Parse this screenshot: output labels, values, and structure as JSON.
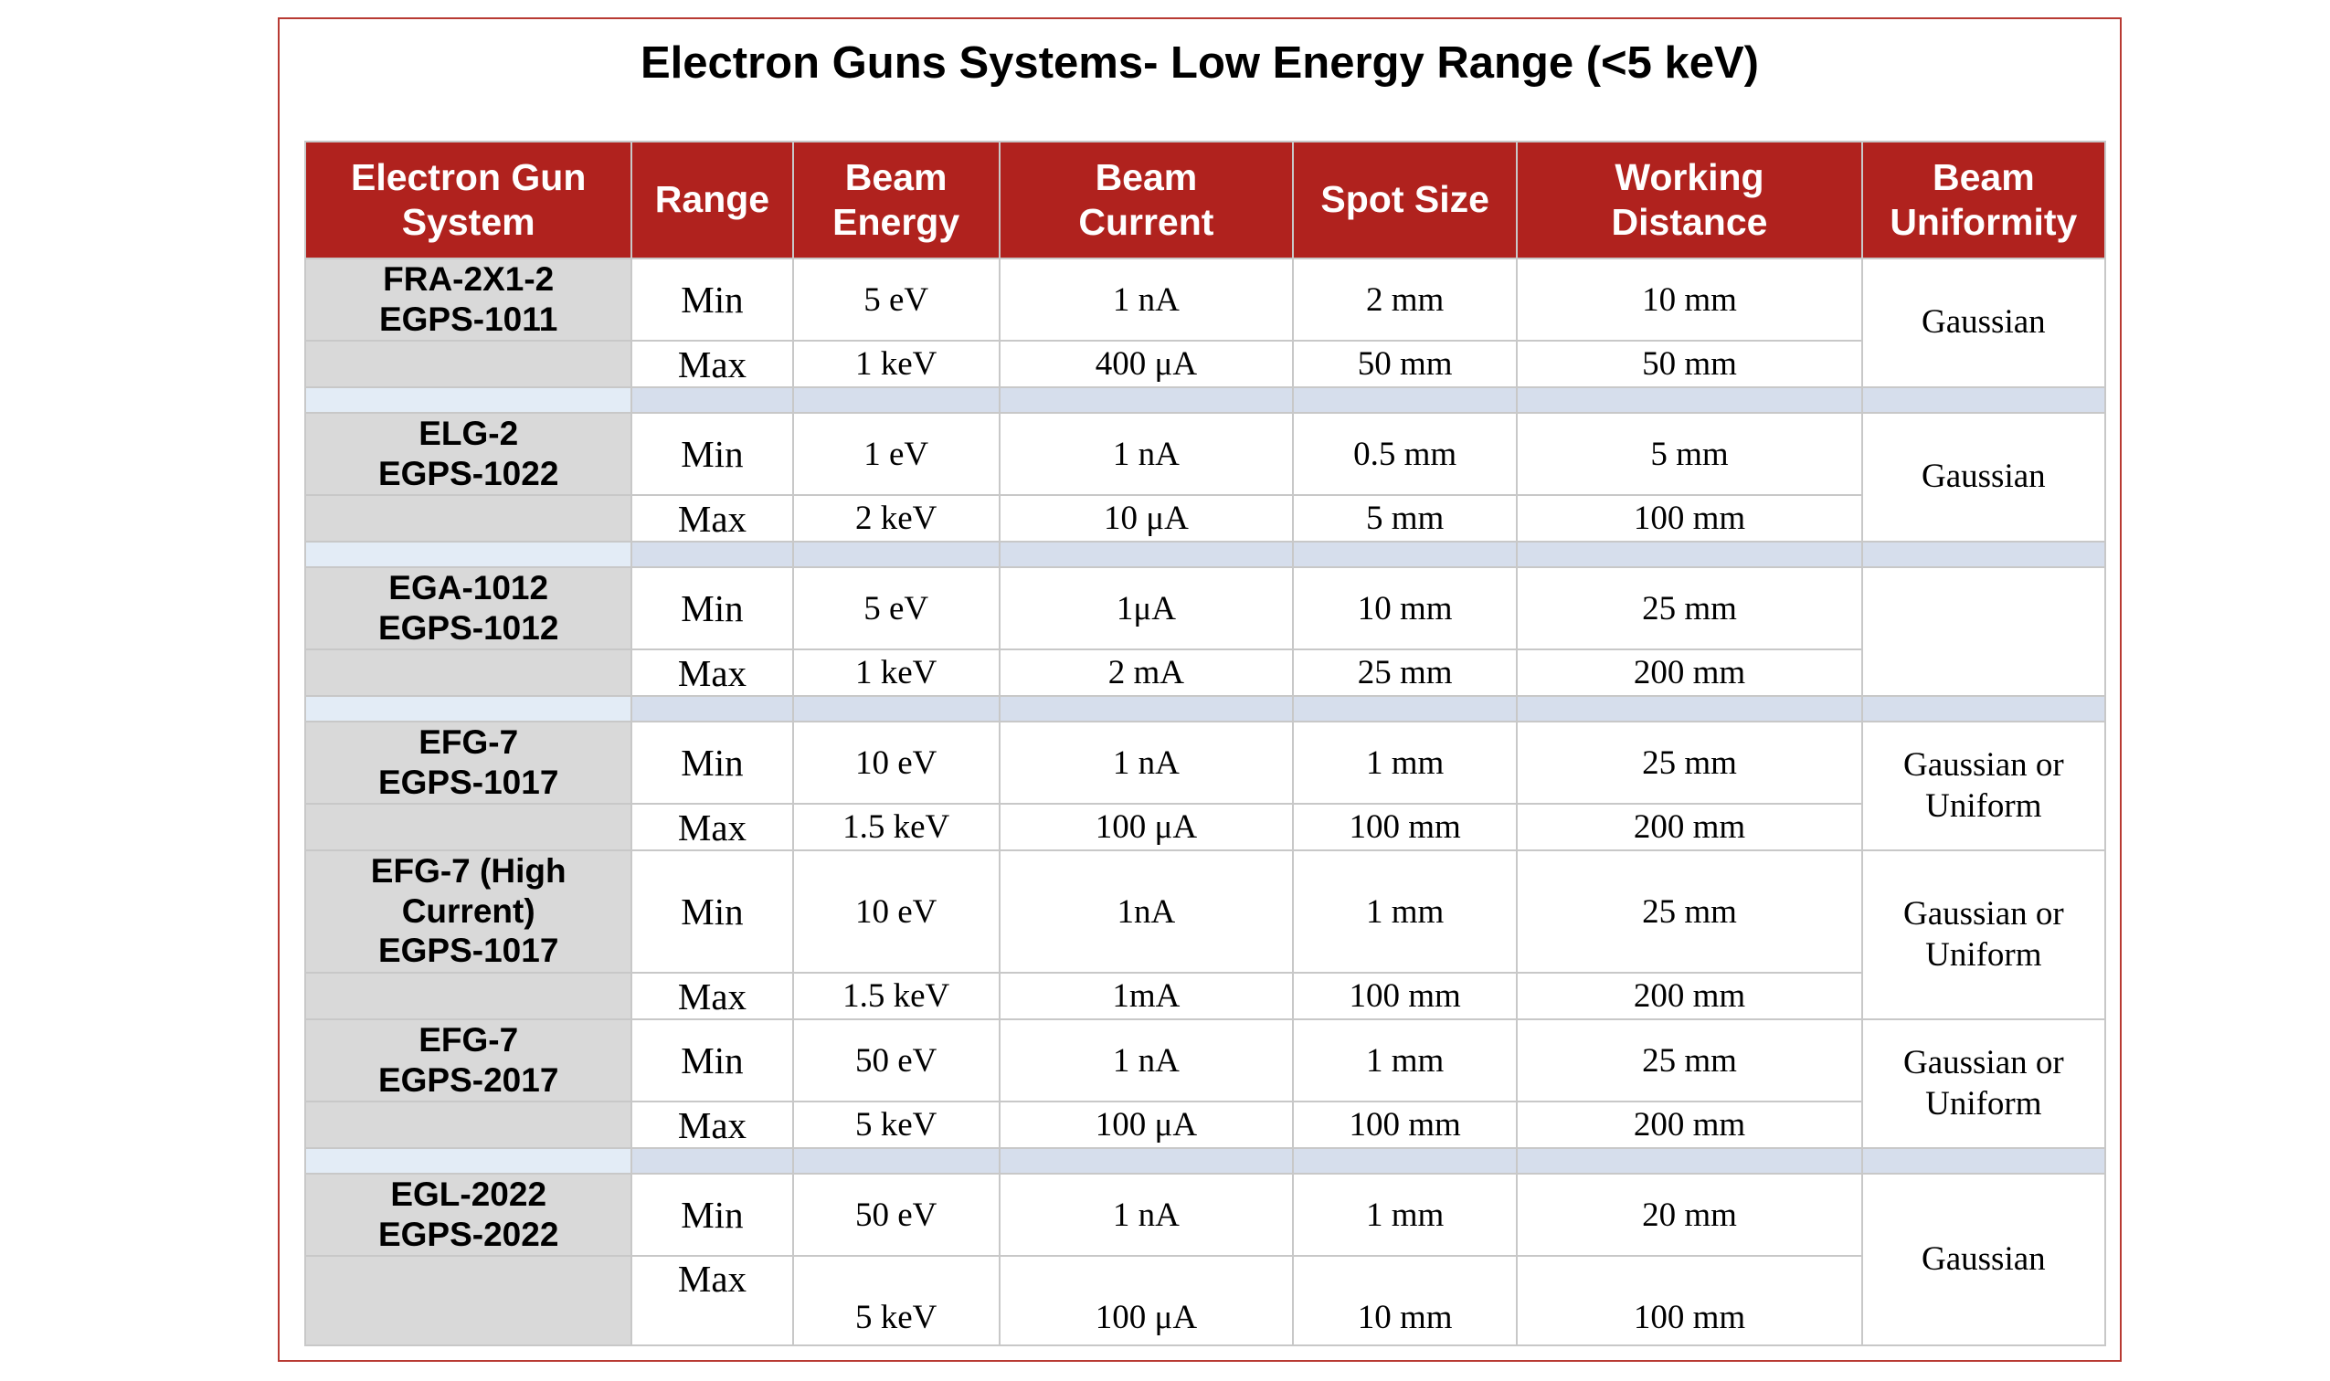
{
  "title": "Electron Guns Systems- Low Energy Range (<5 keV)",
  "headers": [
    [
      "Electron Gun",
      "System"
    ],
    [
      "Range"
    ],
    [
      "Beam",
      "Energy"
    ],
    [
      "Beam",
      "Current"
    ],
    [
      "Spot Size"
    ],
    [
      "Working",
      "Distance"
    ],
    [
      "Beam",
      "Uniformity"
    ]
  ],
  "systems": [
    {
      "name_lines": [
        "FRA-2X1-2",
        "EGPS-1011"
      ],
      "rows": [
        {
          "range": "Min",
          "energy": "5 eV",
          "current": "1 nA",
          "spot": "2 mm",
          "distance": "10 mm"
        },
        {
          "range": "Max",
          "energy": "1 keV",
          "current": "400 μA",
          "spot": "50 mm",
          "distance": "50 mm"
        }
      ],
      "uniformity": [
        "Gaussian"
      ]
    },
    {
      "name_lines": [
        "ELG-2",
        "EGPS-1022"
      ],
      "rows": [
        {
          "range": "Min",
          "energy": "1 eV",
          "current": "1 nA",
          "spot": "0.5 mm",
          "distance": "5 mm"
        },
        {
          "range": "Max",
          "energy": "2 keV",
          "current": "10 μA",
          "spot": "5 mm",
          "distance": "100 mm"
        }
      ],
      "uniformity": [
        "Gaussian"
      ]
    },
    {
      "name_lines": [
        "EGA-1012",
        "EGPS-1012"
      ],
      "rows": [
        {
          "range": "Min",
          "energy": "5 eV",
          "current": "1μA",
          "spot": "10 mm",
          "distance": "25 mm"
        },
        {
          "range": "Max",
          "energy": "1 keV",
          "current": "2 mA",
          "spot": "25 mm",
          "distance": "200 mm"
        }
      ],
      "uniformity": []
    },
    {
      "name_lines": [
        "EFG-7",
        "EGPS-1017"
      ],
      "rows": [
        {
          "range": "Min",
          "energy": "10 eV",
          "current": "1 nA",
          "spot": "1 mm",
          "distance": "25 mm"
        },
        {
          "range": "Max",
          "energy": "1.5 keV",
          "current": "100 μA",
          "spot": "100 mm",
          "distance": "200 mm"
        }
      ],
      "uniformity": [
        "Gaussian or",
        "Uniform"
      ]
    },
    {
      "name_lines": [
        "EFG-7 (High",
        "Current)",
        "EGPS-1017"
      ],
      "rows": [
        {
          "range": "Min",
          "energy": "10 eV",
          "current": "1nA",
          "spot": "1 mm",
          "distance": "25 mm"
        },
        {
          "range": "Max",
          "energy": "1.5 keV",
          "current": "1mA",
          "spot": "100 mm",
          "distance": "200 mm"
        }
      ],
      "uniformity": [
        "Gaussian or",
        "Uniform"
      ]
    },
    {
      "name_lines": [
        "EFG-7",
        "EGPS-2017"
      ],
      "rows": [
        {
          "range": "Min",
          "energy": "50 eV",
          "current": "1 nA",
          "spot": "1 mm",
          "distance": "25 mm"
        },
        {
          "range": "Max",
          "energy": "5 keV",
          "current": "100 μA",
          "spot": "100 mm",
          "distance": "200 mm"
        }
      ],
      "uniformity": [
        "Gaussian or",
        "Uniform"
      ]
    },
    {
      "name_lines": [
        "EGL-2022",
        "EGPS-2022"
      ],
      "rows": [
        {
          "range": "Min",
          "energy": "50 eV",
          "current": "1 nA",
          "spot": "1 mm",
          "distance": "20 mm"
        },
        {
          "range": "Max",
          "energy": "5 keV",
          "current": "100 μA",
          "spot": "10 mm",
          "distance": "100 mm"
        }
      ],
      "uniformity": [
        "Gaussian"
      ]
    }
  ],
  "colors": {
    "header_bg": "#b0221e",
    "header_text": "#ffffff",
    "name_cell_bg": "#d9d9d9",
    "spacer_bg": "#d6deec",
    "frame_border": "#b83a33"
  }
}
